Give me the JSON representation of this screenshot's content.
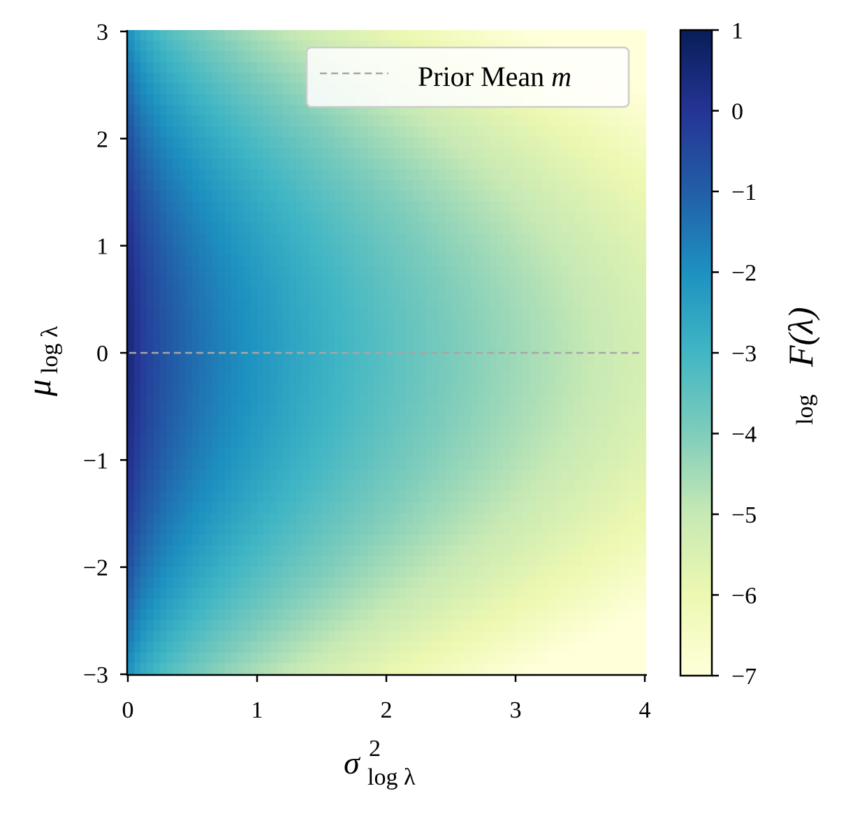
{
  "chart_data": {
    "type": "heatmap",
    "title": "",
    "x_axis": {
      "label_base": "σ",
      "label_superscript": "2",
      "label_subscript": "log λ",
      "range": [
        0,
        4
      ],
      "ticks": [
        0,
        1,
        2,
        3,
        4
      ],
      "tick_labels": [
        "0",
        "1",
        "2",
        "3",
        "4"
      ]
    },
    "y_axis": {
      "label_base": "μ",
      "label_subscript": "log λ",
      "range": [
        -3,
        3
      ],
      "ticks": [
        3,
        2,
        1,
        0,
        -1,
        -2,
        -3
      ],
      "tick_labels": [
        "3",
        "2",
        "1",
        "0",
        "−1",
        "−2",
        "−3"
      ]
    },
    "colorbar": {
      "label_function": "log",
      "label_symbol": "F(λ)",
      "range": [
        -7,
        1
      ],
      "ticks": [
        1,
        0,
        -1,
        -2,
        -3,
        -4,
        -5,
        -6,
        -7
      ],
      "tick_labels": [
        "1",
        "0",
        "−1",
        "−2",
        "−3",
        "−4",
        "−5",
        "−6",
        "−7"
      ],
      "colormap": "YlGnBu",
      "colormap_stops": [
        "#ffffd9",
        "#edf8b1",
        "#c7e9b4",
        "#7fcdbb",
        "#41b6c4",
        "#1d91c0",
        "#225ea8",
        "#253494",
        "#081d58"
      ]
    },
    "grid": {
      "nx": 80,
      "ny": 60,
      "approx_values_description_free": true
    },
    "sample_values": [
      {
        "x": 0.0,
        "y": 0.0,
        "z": 0.8
      },
      {
        "x": 0.5,
        "y": 0.0,
        "z": -1.6
      },
      {
        "x": 1.0,
        "y": 0.0,
        "z": -2.6
      },
      {
        "x": 2.0,
        "y": 0.0,
        "z": -4.2
      },
      {
        "x": 3.0,
        "y": 0.0,
        "z": -5.2
      },
      {
        "x": 4.0,
        "y": 0.0,
        "z": -5.9
      },
      {
        "x": 0.0,
        "y": 3.0,
        "z": -3.0
      },
      {
        "x": 0.0,
        "y": -3.0,
        "z": -3.0
      },
      {
        "x": 2.0,
        "y": 3.0,
        "z": -6.6
      },
      {
        "x": 4.0,
        "y": -3.0,
        "z": -7.0
      }
    ],
    "reference_line": {
      "y": 0,
      "style": "dashed",
      "color": "#a6a6a6",
      "legend_label": "Prior Mean ",
      "legend_label_math": "m"
    },
    "legend": {
      "placement": "top-right"
    }
  }
}
